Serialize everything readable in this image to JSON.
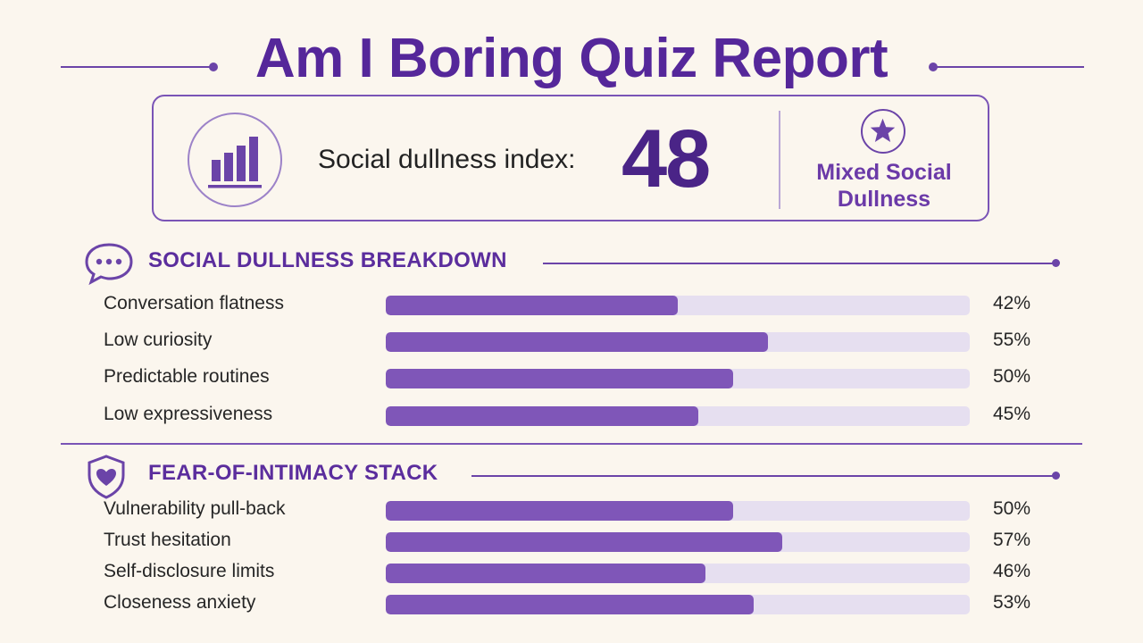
{
  "title": "Am I Boring Quiz Report",
  "score": {
    "label": "Social dullness index:",
    "value": "48",
    "verdict_line1": "Mixed Social",
    "verdict_line2": "Dullness",
    "icons": {
      "chart": "bar-chart-icon",
      "badge": "star-icon"
    }
  },
  "colors": {
    "accent": "#55279a",
    "bar_fill": "#7f56b8",
    "bar_track": "#e6dff0",
    "background": "#fbf6ee"
  },
  "chart_data": [
    {
      "type": "bar",
      "orientation": "horizontal",
      "title": "SOCIAL DULLNESS BREAKDOWN",
      "icon": "speech-bubble-icon",
      "categories": [
        "Conversation flatness",
        "Low curiosity",
        "Predictable routines",
        "Low expressiveness"
      ],
      "values": [
        42,
        55,
        50,
        45
      ],
      "labels": [
        "42%",
        "55%",
        "50%",
        "45%"
      ],
      "xlim": [
        0,
        100
      ]
    },
    {
      "type": "bar",
      "orientation": "horizontal",
      "title": "FEAR-OF-INTIMACY STACK",
      "icon": "heart-shield-icon",
      "categories": [
        "Vulnerability pull-back",
        "Trust hesitation",
        "Self-disclosure limits",
        "Closeness anxiety"
      ],
      "values": [
        50,
        57,
        46,
        53
      ],
      "labels": [
        "50%",
        "57%",
        "46%",
        "53%"
      ],
      "xlim": [
        0,
        100
      ]
    }
  ]
}
